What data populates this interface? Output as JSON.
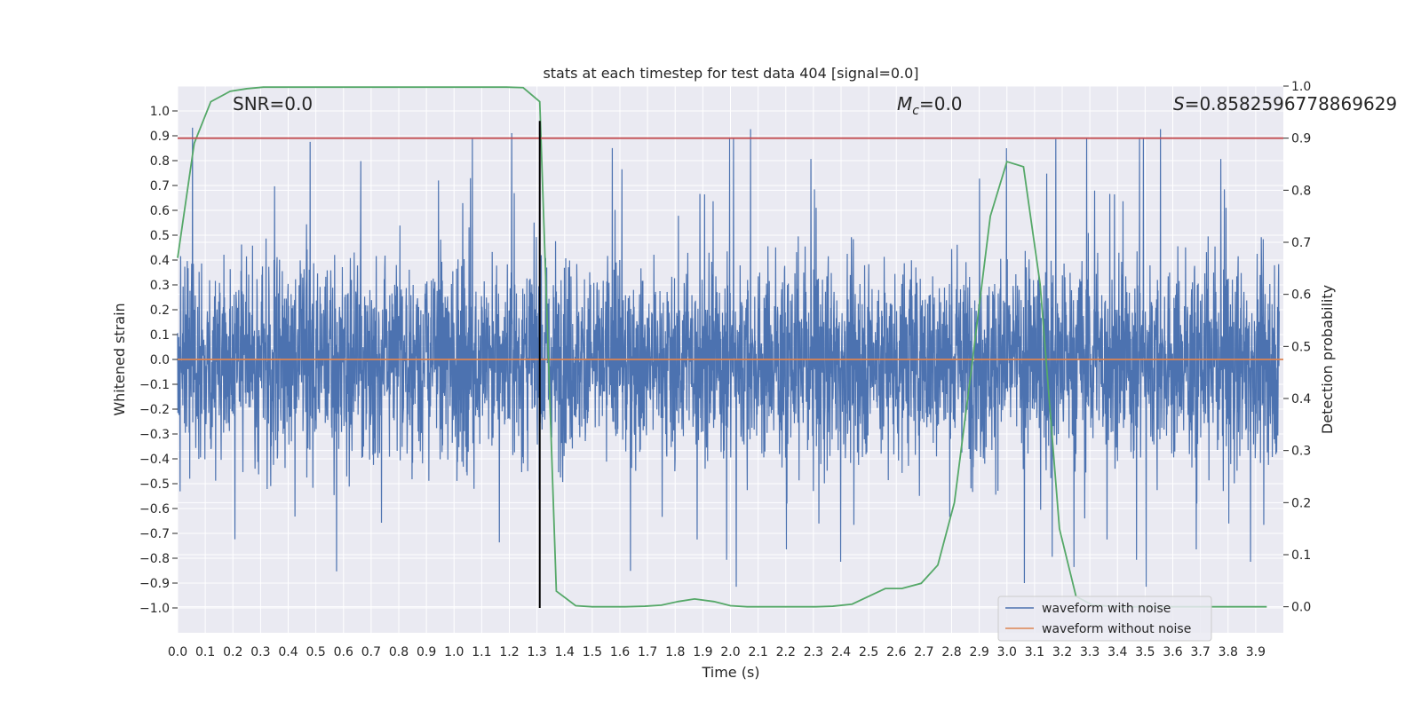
{
  "chart_data": {
    "type": "line",
    "title": "stats at each timestep for test data 404 [signal=0.0]",
    "xlabel": "Time (s)",
    "ylabel": "Whitened strain",
    "y2label": "Detection probability",
    "xlim": [
      0.0,
      4.0
    ],
    "ylim": [
      -1.1,
      1.1
    ],
    "y2lim": [
      -0.05,
      1.0
    ],
    "x_ticks": [
      "0.0",
      "0.1",
      "0.2",
      "0.3",
      "0.4",
      "0.5",
      "0.6",
      "0.7",
      "0.8",
      "0.9",
      "1.0",
      "1.1",
      "1.2",
      "1.3",
      "1.4",
      "1.5",
      "1.6",
      "1.7",
      "1.8",
      "1.9",
      "2.0",
      "2.1",
      "2.2",
      "2.3",
      "2.4",
      "2.5",
      "2.6",
      "2.7",
      "2.8",
      "2.9",
      "3.0",
      "3.1",
      "3.2",
      "3.3",
      "3.4",
      "3.5",
      "3.6",
      "3.7",
      "3.8",
      "3.9"
    ],
    "y_ticks": [
      "1.0",
      "0.9",
      "0.8",
      "0.7",
      "0.6",
      "0.5",
      "0.4",
      "0.3",
      "0.2",
      "0.1",
      "0.0",
      "−0.1",
      "−0.2",
      "−0.3",
      "−0.4",
      "−0.5",
      "−0.6",
      "−0.7",
      "−0.8",
      "−0.9",
      "−1.0"
    ],
    "y2_ticks": [
      "1.0",
      "0.9",
      "0.8",
      "0.7",
      "0.6",
      "0.5",
      "0.4",
      "0.3",
      "0.2",
      "0.1",
      "0.0"
    ],
    "grid": true,
    "legend_position": "bottom-right",
    "annotations": {
      "snr": "SNR=0.0",
      "mc_symbol": "M",
      "mc_sub": "c",
      "mc_value": "=0.0",
      "s_symbol": "S",
      "s_value": "=0.8582596778869629"
    },
    "series": [
      {
        "name": "waveform with noise",
        "color": "#4c72b0",
        "description": "dense random noise trace, roughly within ±0.6 with spikes up to ±0.96"
      },
      {
        "name": "waveform without noise",
        "color": "#dd8452",
        "x": [
          0.0,
          4.0
        ],
        "y": [
          0.0,
          0.0
        ]
      },
      {
        "color": "#55a868",
        "axis": "right",
        "x": [
          0.0,
          0.06,
          0.12,
          0.19,
          0.25,
          0.31,
          0.37,
          0.44,
          0.5,
          0.56,
          0.62,
          0.69,
          0.75,
          0.81,
          0.87,
          0.94,
          1.0,
          1.06,
          1.12,
          1.19,
          1.25,
          1.31,
          1.37,
          1.44,
          1.5,
          1.56,
          1.62,
          1.69,
          1.75,
          1.81,
          1.87,
          1.94,
          2.0,
          2.06,
          2.12,
          2.19,
          2.25,
          2.31,
          2.37,
          2.44,
          2.5,
          2.56,
          2.62,
          2.69,
          2.75,
          2.81,
          2.87,
          2.94,
          3.0,
          3.06,
          3.12,
          3.19,
          3.25,
          3.31,
          3.37,
          3.44,
          3.5,
          3.56,
          3.62,
          3.69,
          3.75,
          3.81,
          3.87,
          3.94
        ],
        "y": [
          0.67,
          0.89,
          0.97,
          0.99,
          0.995,
          0.998,
          0.998,
          0.998,
          0.998,
          0.998,
          0.998,
          0.998,
          0.998,
          0.998,
          0.998,
          0.998,
          0.998,
          0.998,
          0.998,
          0.998,
          0.997,
          0.97,
          0.03,
          0.002,
          0.0,
          0.0,
          0.0,
          0.001,
          0.003,
          0.01,
          0.015,
          0.01,
          0.002,
          0.0,
          0.0,
          0.0,
          0.0,
          0.0,
          0.001,
          0.005,
          0.02,
          0.035,
          0.035,
          0.045,
          0.08,
          0.2,
          0.45,
          0.75,
          0.855,
          0.845,
          0.62,
          0.15,
          0.02,
          0.003,
          0.001,
          0.0,
          0.0,
          0.0,
          0.0,
          0.0,
          0.0,
          0.0,
          0.0,
          0.0
        ]
      },
      {
        "color": "#c44e52",
        "axis": "right",
        "x": [
          0.0,
          4.0
        ],
        "y": [
          0.9,
          0.9
        ]
      },
      {
        "color": "#000000",
        "axis": "left",
        "x": [
          1.31,
          1.31
        ],
        "y": [
          -1.0,
          0.96
        ]
      }
    ]
  }
}
